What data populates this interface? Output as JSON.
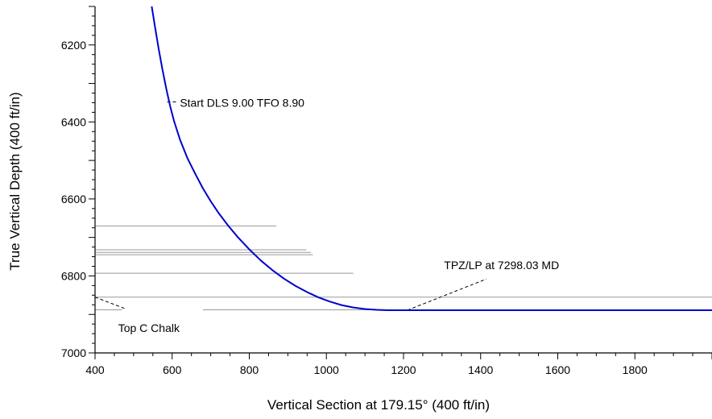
{
  "chart_data": {
    "type": "line",
    "title": "",
    "xlabel": "Vertical Section at 179.15° (400 ft/in)",
    "ylabel": "True Vertical Depth (400 ft/in)",
    "xlim": [
      400,
      2000
    ],
    "ylim": [
      6100,
      7000
    ],
    "y_inverted": true,
    "grid": false,
    "x_ticks": [
      400,
      600,
      800,
      1000,
      1200,
      1400,
      1600,
      1800
    ],
    "x_tick_labels": [
      "400",
      "600",
      "800",
      "1000",
      "1200",
      "1400",
      "1600",
      "1800"
    ],
    "y_ticks": [
      6200,
      6400,
      6600,
      6800,
      7000
    ],
    "y_tick_labels": [
      "6200",
      "6400",
      "6600",
      "6800",
      "7000"
    ],
    "series": [
      {
        "color": "#0000cc",
        "x": [
          547,
          555,
          565,
          575,
          585,
          595,
          605,
          620,
          640,
          660,
          680,
          700,
          720,
          745,
          770,
          800,
          830,
          860,
          890,
          920,
          950,
          980,
          1010,
          1040,
          1070,
          1100,
          1130,
          1160,
          1190,
          1215,
          1400,
          1600,
          1800,
          2000
        ],
        "y": [
          6100,
          6150,
          6210,
          6265,
          6315,
          6360,
          6398,
          6445,
          6495,
          6535,
          6573,
          6606,
          6636,
          6669,
          6699,
          6731,
          6760,
          6785,
          6807,
          6826,
          6842,
          6856,
          6867,
          6876,
          6882,
          6886,
          6888,
          6889,
          6889,
          6889,
          6889,
          6889,
          6889,
          6889
        ]
      }
    ],
    "formation_lines": [
      {
        "x_start": 400,
        "x_end": 870,
        "y": 6670,
        "color": "#999999"
      },
      {
        "x_start": 400,
        "x_end": 948,
        "y": 6732,
        "color": "#999999"
      },
      {
        "x_start": 400,
        "x_end": 960,
        "y": 6739,
        "color": "#999999"
      },
      {
        "x_start": 400,
        "x_end": 965,
        "y": 6745,
        "color": "#999999"
      },
      {
        "x_start": 400,
        "x_end": 1070,
        "y": 6793,
        "color": "#999999"
      },
      {
        "x_start": 400,
        "x_end": 2000,
        "y": 6855,
        "color": "#999999"
      },
      {
        "x_start": 400,
        "x_end": 470,
        "y": 6888,
        "color": "#999999"
      },
      {
        "x_start": 680,
        "x_end": 2000,
        "y": 6888,
        "color": "#999999"
      }
    ],
    "annotations": [
      {
        "text": "Start DLS 9.00 TFO 8.90",
        "x": 620,
        "y": 6350,
        "leader": [
          [
            587,
            6348
          ],
          [
            616,
            6348
          ]
        ]
      },
      {
        "text": "TPZ/LP at 7298.03 MD",
        "x": 1305,
        "y": 6772,
        "leader": [
          [
            1210,
            6889
          ],
          [
            1415,
            6808
          ]
        ]
      },
      {
        "text": "Top C Chalk",
        "x": 460,
        "y": 6935,
        "leader": [
          [
            400,
            6855
          ],
          [
            478,
            6885
          ]
        ]
      }
    ]
  }
}
